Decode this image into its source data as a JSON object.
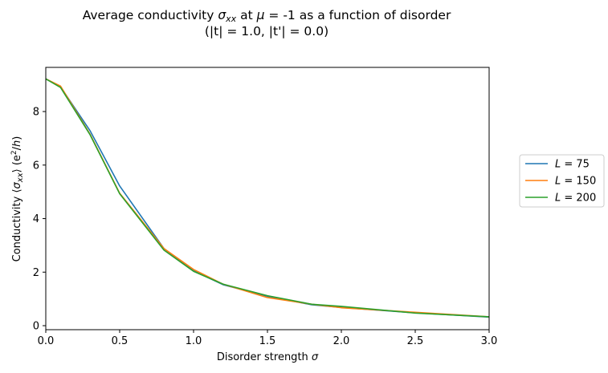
{
  "chart_data": {
    "type": "line",
    "title_line1_prefix": "Average conductivity ",
    "title_line1_symbol": "σ",
    "title_line1_symbol_sub": "xx",
    "title_line1_middle": " at ",
    "title_line1_mu": "μ",
    "title_line1_suffix": " = -1 as a function of disorder",
    "title_line2": "(|t| = 1.0, |t'| = 0.0)",
    "xlabel_prefix": "Disorder strength ",
    "xlabel_symbol": "σ",
    "ylabel_prefix": "Conductivity ⟨",
    "ylabel_symbol": "σ",
    "ylabel_symbol_sub": "xx",
    "ylabel_middle": "⟩ (e",
    "ylabel_sup": "2",
    "ylabel_slash": "/",
    "ylabel_h": "h",
    "ylabel_end": ")",
    "xlim": [
      0,
      3
    ],
    "ylim": [
      -0.15,
      9.65
    ],
    "xticks": [
      0.0,
      0.5,
      1.0,
      1.5,
      2.0,
      2.5,
      3.0
    ],
    "xtick_labels": [
      "0.0",
      "0.5",
      "1.0",
      "1.5",
      "2.0",
      "2.5",
      "3.0"
    ],
    "yticks": [
      0,
      2,
      4,
      6,
      8
    ],
    "ytick_labels": [
      "0",
      "2",
      "4",
      "6",
      "8"
    ],
    "grid": false,
    "legend_position": "right-outside",
    "series": [
      {
        "name_symbol": "L",
        "name_value": " = 75",
        "color": "#1f77b4",
        "x": [
          0.0,
          0.1,
          0.3,
          0.5,
          0.8,
          1.0,
          1.2,
          1.5,
          1.8,
          2.0,
          2.5,
          3.0
        ],
        "y": [
          9.22,
          8.92,
          7.28,
          5.22,
          2.88,
          2.05,
          1.53,
          1.1,
          0.78,
          0.68,
          0.48,
          0.32
        ]
      },
      {
        "name_symbol": "L",
        "name_value": " = 150",
        "color": "#ff7f0e",
        "x": [
          0.0,
          0.1,
          0.3,
          0.5,
          0.8,
          1.0,
          1.2,
          1.5,
          1.8,
          2.0,
          2.5,
          3.0
        ],
        "y": [
          9.22,
          8.95,
          7.15,
          4.95,
          2.88,
          2.1,
          1.55,
          1.05,
          0.8,
          0.67,
          0.5,
          0.33
        ]
      },
      {
        "name_symbol": "L",
        "name_value": " = 200",
        "color": "#2ca02c",
        "x": [
          0.0,
          0.1,
          0.3,
          0.5,
          0.8,
          1.0,
          1.2,
          1.5,
          1.8,
          2.0,
          2.5,
          3.0
        ],
        "y": [
          9.22,
          8.9,
          7.13,
          4.93,
          2.82,
          2.03,
          1.55,
          1.12,
          0.8,
          0.72,
          0.47,
          0.33
        ]
      }
    ]
  }
}
